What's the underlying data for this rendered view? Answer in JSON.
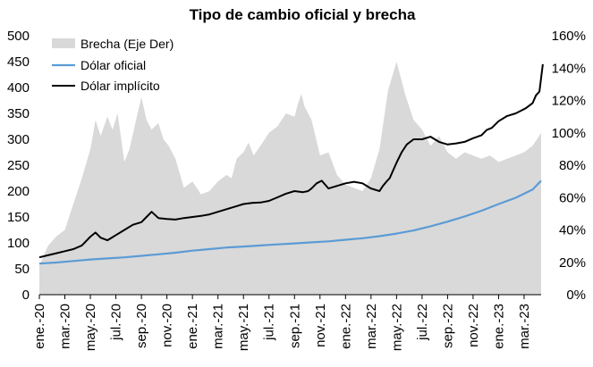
{
  "chart_data": {
    "type": "line",
    "title": "Tipo de cambio oficial y brecha",
    "xlabel": "",
    "ylabel": "",
    "ylim": [
      0,
      500
    ],
    "y2lim": [
      0,
      160
    ],
    "y_ticks": [
      "0",
      "50",
      "100",
      "150",
      "200",
      "250",
      "300",
      "350",
      "400",
      "450",
      "500"
    ],
    "y2_ticks": [
      "0%",
      "20%",
      "40%",
      "60%",
      "80%",
      "100%",
      "120%",
      "140%",
      "160%"
    ],
    "x_ticks": [
      "ene.-20",
      "mar.-20",
      "may.-20",
      "jul.-20",
      "sep.-20",
      "nov.-20",
      "ene.-21",
      "mar.-21",
      "may.-21",
      "jul.-21",
      "sep.-21",
      "nov.-21",
      "ene.-22",
      "mar.-22",
      "may.-22",
      "jul.-22",
      "sep.-22",
      "nov.-22",
      "ene.-23",
      "mar.-23"
    ],
    "legend": {
      "position": "top-left",
      "entries": [
        "Brecha (Eje Der)",
        "Dólar oficial",
        "Dólar implícito"
      ]
    },
    "grid": false,
    "series": [
      {
        "name": "Brecha (Eje Der)",
        "type": "area",
        "axis": "right",
        "color": "#d9d9d9",
        "x": [
          0,
          0.5,
          1,
          1.5,
          2,
          2.5,
          3,
          3.3,
          3.6,
          4,
          4.3,
          4.6,
          5,
          5.3,
          5.6,
          6,
          6.3,
          6.6,
          7,
          7.3,
          7.6,
          8,
          8.5,
          9,
          9.5,
          10,
          10.5,
          11,
          11.3,
          11.6,
          12,
          12.3,
          12.6,
          13,
          13.5,
          14,
          14.5,
          15,
          15.2,
          15.4,
          15.6,
          16,
          16.5,
          17,
          17.5,
          18,
          18.5,
          19,
          19.5,
          20,
          20.5,
          21,
          21.5,
          22,
          22.5,
          23,
          23.5,
          24,
          24.5,
          25,
          25.5,
          26,
          26.5,
          27,
          27.5,
          28,
          28.5,
          29,
          29.5
        ],
        "values": [
          18,
          30,
          36,
          40,
          56,
          72,
          90,
          108,
          98,
          110,
          102,
          112,
          82,
          90,
          104,
          122,
          108,
          102,
          106,
          96,
          92,
          84,
          66,
          70,
          62,
          64,
          70,
          74,
          72,
          84,
          88,
          94,
          86,
          92,
          100,
          104,
          112,
          110,
          118,
          124,
          116,
          108,
          86,
          88,
          74,
          68,
          66,
          64,
          72,
          90,
          126,
          144,
          124,
          108,
          102,
          92,
          98,
          88,
          84,
          88,
          86,
          84,
          86,
          82,
          84,
          86,
          88,
          92,
          100
        ]
      },
      {
        "name": "Dólar oficial",
        "type": "line",
        "axis": "left",
        "color": "#5b9bd5",
        "x": [
          0,
          1,
          2,
          3,
          4,
          5,
          6,
          7,
          8,
          9,
          10,
          11,
          12,
          13,
          14,
          15,
          16,
          17,
          18,
          19,
          20,
          21,
          22,
          23,
          24,
          25,
          26,
          27,
          28,
          29,
          29.5
        ],
        "values": [
          60,
          62,
          65,
          68,
          70,
          72,
          75,
          78,
          81,
          85,
          88,
          91,
          93,
          95,
          97,
          99,
          101,
          103,
          106,
          109,
          113,
          118,
          124,
          132,
          141,
          151,
          162,
          175,
          187,
          203,
          220
        ]
      },
      {
        "name": "Dólar implícito",
        "type": "line",
        "axis": "left",
        "color": "#000000",
        "x": [
          0,
          0.5,
          1,
          1.5,
          2,
          2.5,
          3,
          3.3,
          3.6,
          4,
          4.5,
          5,
          5.5,
          6,
          6.3,
          6.6,
          7,
          7.5,
          8,
          8.5,
          9,
          9.5,
          10,
          10.5,
          11,
          11.5,
          12,
          12.5,
          13,
          13.5,
          14,
          14.5,
          15,
          15.5,
          15.8,
          16,
          16.3,
          16.6,
          17,
          17.5,
          18,
          18.5,
          19,
          19.5,
          20,
          20.2,
          20.4,
          20.6,
          21,
          21.3,
          21.6,
          22,
          22.5,
          23,
          23.5,
          24,
          24.5,
          25,
          25.5,
          26,
          26.3,
          26.6,
          27,
          27.5,
          28,
          28.3,
          28.6,
          29,
          29.2,
          29.4,
          29.6
        ],
        "values": [
          72,
          76,
          80,
          84,
          88,
          95,
          112,
          120,
          110,
          105,
          115,
          125,
          135,
          140,
          150,
          160,
          148,
          146,
          145,
          148,
          150,
          152,
          155,
          160,
          165,
          170,
          175,
          177,
          178,
          181,
          188,
          195,
          200,
          198,
          200,
          205,
          215,
          220,
          205,
          210,
          215,
          218,
          215,
          205,
          200,
          210,
          218,
          225,
          255,
          275,
          290,
          300,
          300,
          305,
          295,
          290,
          292,
          295,
          302,
          308,
          318,
          322,
          335,
          345,
          350,
          355,
          360,
          370,
          385,
          392,
          445
        ]
      }
    ]
  }
}
